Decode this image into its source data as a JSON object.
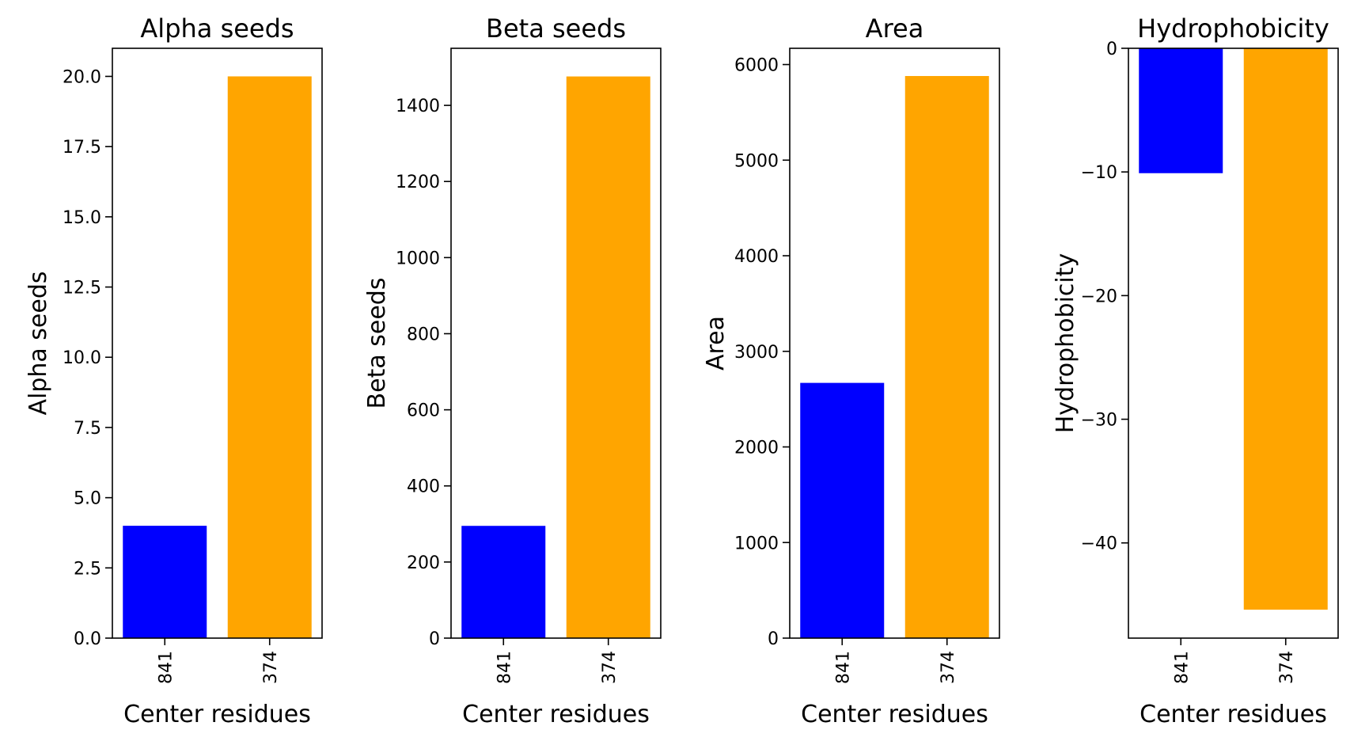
{
  "chart_data": [
    {
      "type": "bar",
      "title": "Alpha seeds",
      "xlabel": "Center residues",
      "ylabel": "Alpha seeds",
      "categories": [
        "841",
        "374"
      ],
      "values": [
        4.0,
        20.0
      ],
      "colors": [
        "#0000ff",
        "#ffa500"
      ],
      "ylim": [
        0,
        21
      ],
      "yticks": [
        0,
        2.5,
        5,
        7.5,
        10,
        12.5,
        15,
        17.5,
        20
      ],
      "ytick_labels": [
        "0.0",
        "2.5",
        "5.0",
        "7.5",
        "10.0",
        "12.5",
        "15.0",
        "17.5",
        "20.0"
      ],
      "grid": false
    },
    {
      "type": "bar",
      "title": "Beta seeds",
      "xlabel": "Center residues",
      "ylabel": "Beta seeds",
      "categories": [
        "841",
        "374"
      ],
      "values": [
        295,
        1476
      ],
      "colors": [
        "#0000ff",
        "#ffa500"
      ],
      "ylim": [
        0,
        1550
      ],
      "yticks": [
        0,
        200,
        400,
        600,
        800,
        1000,
        1200,
        1400
      ],
      "ytick_labels": [
        "0",
        "200",
        "400",
        "600",
        "800",
        "1000",
        "1200",
        "1400"
      ],
      "grid": false
    },
    {
      "type": "bar",
      "title": "Area",
      "xlabel": "Center residues",
      "ylabel": "Area",
      "categories": [
        "841",
        "374"
      ],
      "values": [
        2670,
        5880
      ],
      "colors": [
        "#0000ff",
        "#ffa500"
      ],
      "ylim": [
        0,
        6170
      ],
      "yticks": [
        0,
        1000,
        2000,
        3000,
        4000,
        5000,
        6000
      ],
      "ytick_labels": [
        "0",
        "1000",
        "2000",
        "3000",
        "4000",
        "5000",
        "6000"
      ],
      "grid": false
    },
    {
      "type": "bar",
      "title": "Hydrophobicity",
      "xlabel": "Center residues",
      "ylabel": "Hydrophobicity",
      "categories": [
        "841",
        "374"
      ],
      "values": [
        -10.1,
        -45.4
      ],
      "colors": [
        "#0000ff",
        "#ffa500"
      ],
      "ylim": [
        -47.7,
        0
      ],
      "yticks": [
        0,
        -10,
        -20,
        -30,
        -40
      ],
      "ytick_labels": [
        "0",
        "−10",
        "−20",
        "−30",
        "−40"
      ],
      "grid": false
    }
  ]
}
